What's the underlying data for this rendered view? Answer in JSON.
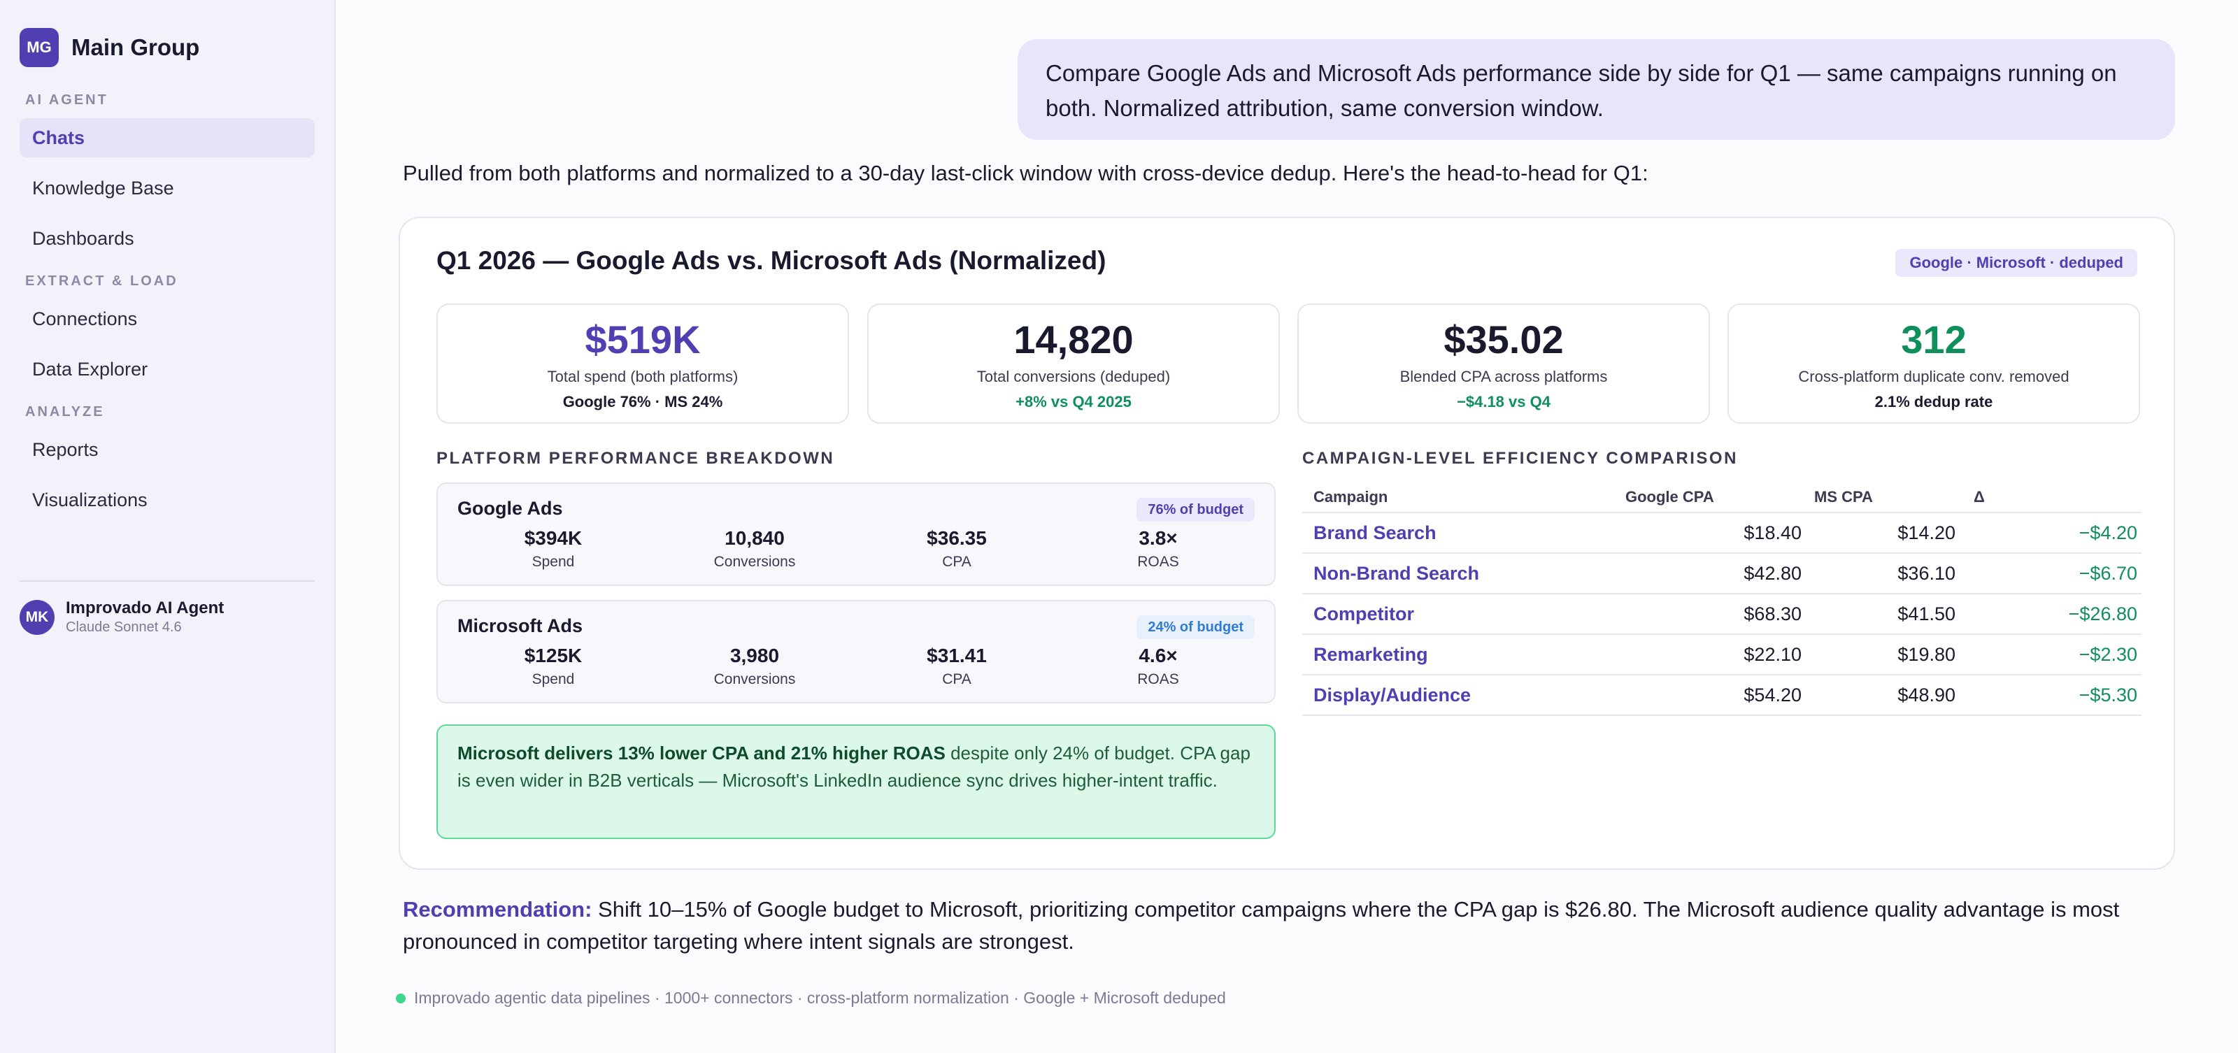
{
  "sidebar": {
    "brand_initials": "MG",
    "brand_name": "Main Group",
    "sections": [
      {
        "title": "AI AGENT",
        "items": [
          "Chats",
          "Knowledge Base",
          "Dashboards"
        ]
      },
      {
        "title": "EXTRACT & LOAD",
        "items": [
          "Connections",
          "Data Explorer"
        ]
      },
      {
        "title": "ANALYZE",
        "items": [
          "Reports",
          "Visualizations"
        ]
      }
    ],
    "active_item": "Chats",
    "agent": {
      "initials": "MK",
      "name": "Improvado AI Agent",
      "model": "Claude Sonnet 4.6"
    }
  },
  "chat": {
    "user_message": "Compare Google Ads and Microsoft Ads performance side by side for Q1 — same campaigns running on both. Normalized attribution, same conversion window.",
    "intro": "Pulled from both platforms and normalized to a 30-day last-click window with cross-device dedup. Here's the head-to-head for Q1:",
    "recommendation_label": "Recommendation:",
    "recommendation_text": " Shift 10–15% of Google budget to Microsoft, prioritizing competitor campaigns where the CPA gap is $26.80. The Microsoft audience quality advantage is most pronounced in competitor targeting where intent signals are strongest.",
    "footer": "Improvado agentic data pipelines · 1000+ connectors · cross-platform normalization · Google + Microsoft deduped"
  },
  "card": {
    "title": "Q1 2026 — Google Ads vs. Microsoft Ads (Normalized)",
    "badge": "Google · Microsoft · deduped",
    "kpis": [
      {
        "value": "$519K",
        "label": "Total spend (both platforms)",
        "sub": "Google 76% · MS 24%"
      },
      {
        "value": "14,820",
        "label": "Total conversions (deduped)",
        "sub": "+8% vs Q4 2025"
      },
      {
        "value": "$35.02",
        "label": "Blended CPA across platforms",
        "sub": "−$4.18 vs Q4"
      },
      {
        "value": "312",
        "label": "Cross-platform duplicate conv. removed",
        "sub": "2.1% dedup rate"
      }
    ],
    "breakdown_title": "PLATFORM PERFORMANCE BREAKDOWN",
    "platforms": [
      {
        "name": "Google Ads",
        "badge": "76% of budget",
        "metrics": [
          {
            "v": "$394K",
            "l": "Spend"
          },
          {
            "v": "10,840",
            "l": "Conversions"
          },
          {
            "v": "$36.35",
            "l": "CPA"
          },
          {
            "v": "3.8×",
            "l": "ROAS"
          }
        ]
      },
      {
        "name": "Microsoft Ads",
        "badge": "24% of budget",
        "metrics": [
          {
            "v": "$125K",
            "l": "Spend"
          },
          {
            "v": "3,980",
            "l": "Conversions"
          },
          {
            "v": "$31.41",
            "l": "CPA"
          },
          {
            "v": "4.6×",
            "l": "ROAS"
          }
        ]
      }
    ],
    "insight_bold": "Microsoft delivers 13% lower CPA and 21% higher ROAS",
    "insight_rest": " despite only 24% of budget. CPA gap is even wider in B2B verticals — Microsoft's LinkedIn audience sync drives higher-intent traffic.",
    "campaign_title": "CAMPAIGN-LEVEL EFFICIENCY COMPARISON",
    "table": {
      "headers": [
        "Campaign",
        "Google CPA",
        "MS CPA",
        "Δ"
      ],
      "rows": [
        [
          "Brand Search",
          "$18.40",
          "$14.20",
          "−$4.20"
        ],
        [
          "Non-Brand Search",
          "$42.80",
          "$36.10",
          "−$6.70"
        ],
        [
          "Competitor",
          "$68.30",
          "$41.50",
          "−$26.80"
        ],
        [
          "Remarketing",
          "$22.10",
          "$19.80",
          "−$2.30"
        ],
        [
          "Display/Audience",
          "$54.20",
          "$48.90",
          "−$5.30"
        ]
      ]
    }
  }
}
